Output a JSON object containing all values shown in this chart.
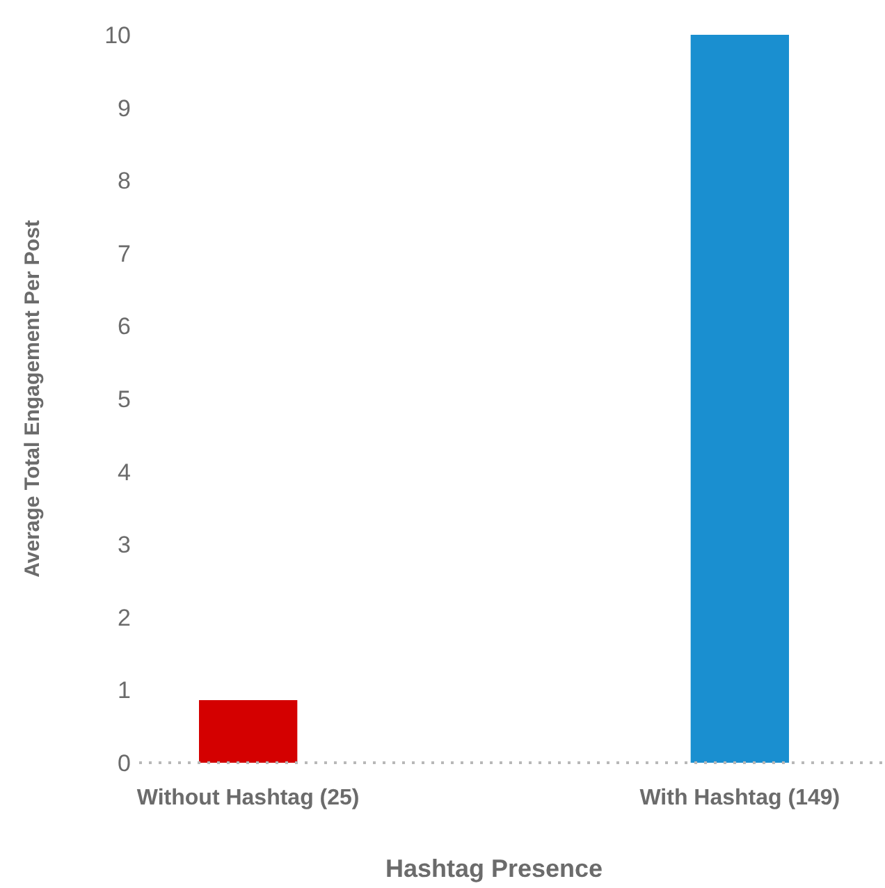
{
  "chart_data": {
    "type": "bar",
    "xlabel": "Hashtag Presence",
    "ylabel": "Average Total Engagement Per Post",
    "categories": [
      "Without Hashtag (25)",
      "With Hashtag (149)"
    ],
    "values": [
      0.86,
      10.0
    ],
    "colors": [
      "#d40000",
      "#1a8fd0"
    ],
    "ylim": [
      0,
      10
    ],
    "yticks": [
      0,
      1,
      2,
      3,
      4,
      5,
      6,
      7,
      8,
      9,
      10
    ],
    "grid": false
  }
}
